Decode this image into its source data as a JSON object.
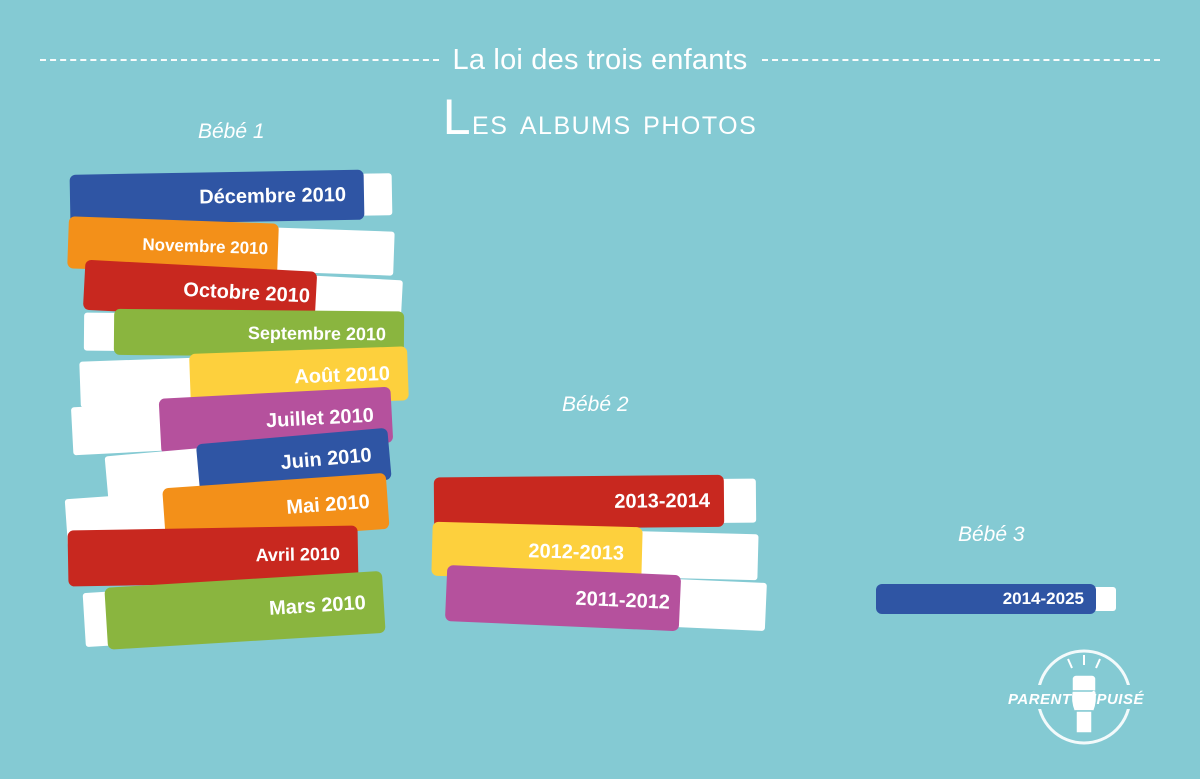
{
  "header": {
    "subtitle": "La loi des trois enfants",
    "title_first": "L",
    "title_rest": "es albums photos"
  },
  "babies": [
    {
      "label": "Bébé 1"
    },
    {
      "label": "Bébé 2"
    },
    {
      "label": "Bébé 3"
    }
  ],
  "stack1": [
    {
      "label": "Décembre 2010",
      "color": "#2f55a4"
    },
    {
      "label": "Novembre 2010",
      "color": "#f39019"
    },
    {
      "label": "Octobre 2010",
      "color": "#c8281f"
    },
    {
      "label": "Septembre 2010",
      "color": "#8ab53f"
    },
    {
      "label": "Août 2010",
      "color": "#fdd03d"
    },
    {
      "label": "Juillet 2010",
      "color": "#b5519d"
    },
    {
      "label": "Juin 2010",
      "color": "#2f55a4"
    },
    {
      "label": "Mai 2010",
      "color": "#f39019"
    },
    {
      "label": "Avril 2010",
      "color": "#c8281f"
    },
    {
      "label": "Mars 2010",
      "color": "#8ab53f"
    }
  ],
  "stack2": [
    {
      "label": "2013-2014",
      "color": "#c8281f"
    },
    {
      "label": "2012-2013",
      "color": "#fdd03d"
    },
    {
      "label": "2011-2012",
      "color": "#b5519d"
    }
  ],
  "stack3": [
    {
      "label": "2014-2025",
      "color": "#2f55a4"
    }
  ],
  "logo": {
    "left_word": "PARENT",
    "right_word": "ÉPUISÉ",
    "icon": "raised-fist-icon"
  }
}
